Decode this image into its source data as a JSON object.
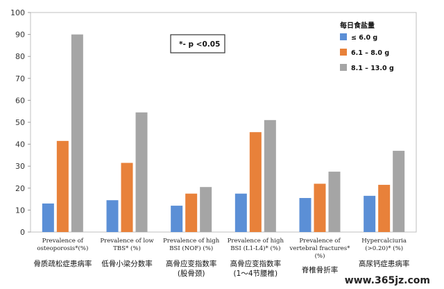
{
  "chart_data": {
    "type": "bar",
    "ylim": [
      0,
      100
    ],
    "yticks": [
      0,
      10,
      20,
      30,
      40,
      50,
      60,
      70,
      80,
      90,
      100
    ],
    "legend_title": "每日食盐量",
    "legend_placement": "top-right",
    "annotation": "*- p <0.05",
    "grid": false,
    "categories": [
      {
        "en_line1": "Prevalence of",
        "en_line2": "osteoporosis*(%)",
        "cn_line1": "骨质疏松症患病率",
        "cn_line2": ""
      },
      {
        "en_line1": "Prevalence of low",
        "en_line2": "TBS* (%)",
        "cn_line1": "低骨小梁分数率",
        "cn_line2": ""
      },
      {
        "en_line1": "Prevalence of high",
        "en_line2": "BSI (NOF) (%)",
        "cn_line1": "高骨应变指数率",
        "cn_line2": "(股骨颈)"
      },
      {
        "en_line1": "Prevalence of high",
        "en_line2": "BSI (L1-L4)* (%)",
        "cn_line1": "高骨应变指数率",
        "cn_line2": "(1～4节腰椎)"
      },
      {
        "en_line1": "Prevalence of",
        "en_line2": "vertebral fractures*",
        "en_line3": "(%)",
        "cn_line1": "脊椎骨折率",
        "cn_line2": ""
      },
      {
        "en_line1": "Hypercalciuria",
        "en_line2": "(>0.20)* (%)",
        "cn_line1": "高尿钙症患病率",
        "cn_line2": ""
      }
    ],
    "series": [
      {
        "name": "≤ 6.0 g",
        "color": "#5b8fd6",
        "values": [
          13,
          14.5,
          12,
          17.5,
          15.5,
          16.5
        ]
      },
      {
        "name": "6.1 – 8.0 g",
        "color": "#e8813a",
        "values": [
          41.5,
          31.5,
          17.5,
          45.5,
          22,
          21.5
        ]
      },
      {
        "name": "8.1 – 13.0 g",
        "color": "#a5a5a5",
        "values": [
          90,
          54.5,
          20.5,
          51,
          27.5,
          37
        ]
      }
    ]
  },
  "watermark": "www.365jz.com"
}
